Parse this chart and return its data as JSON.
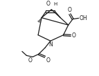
{
  "bg_color": "#ffffff",
  "line_color": "#1a1a1a",
  "lw": 0.9,
  "figsize": [
    1.43,
    1.1
  ],
  "dpi": 100,
  "xlim": [
    0,
    10
  ],
  "ylim": [
    0,
    8
  ]
}
